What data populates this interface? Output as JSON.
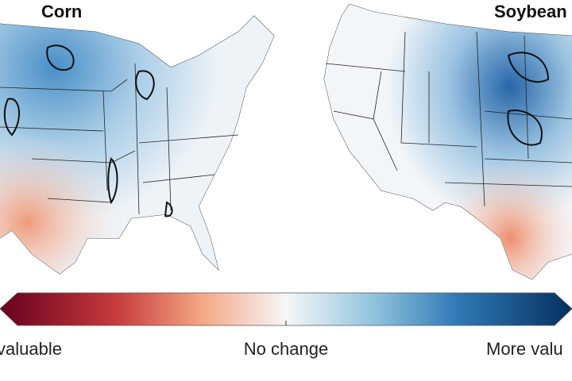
{
  "panels": [
    {
      "title": "Corn"
    },
    {
      "title": "Soybean"
    }
  ],
  "colorbar": {
    "left_label": "valuable",
    "center_label": "No change",
    "right_label": "More valu"
  }
}
